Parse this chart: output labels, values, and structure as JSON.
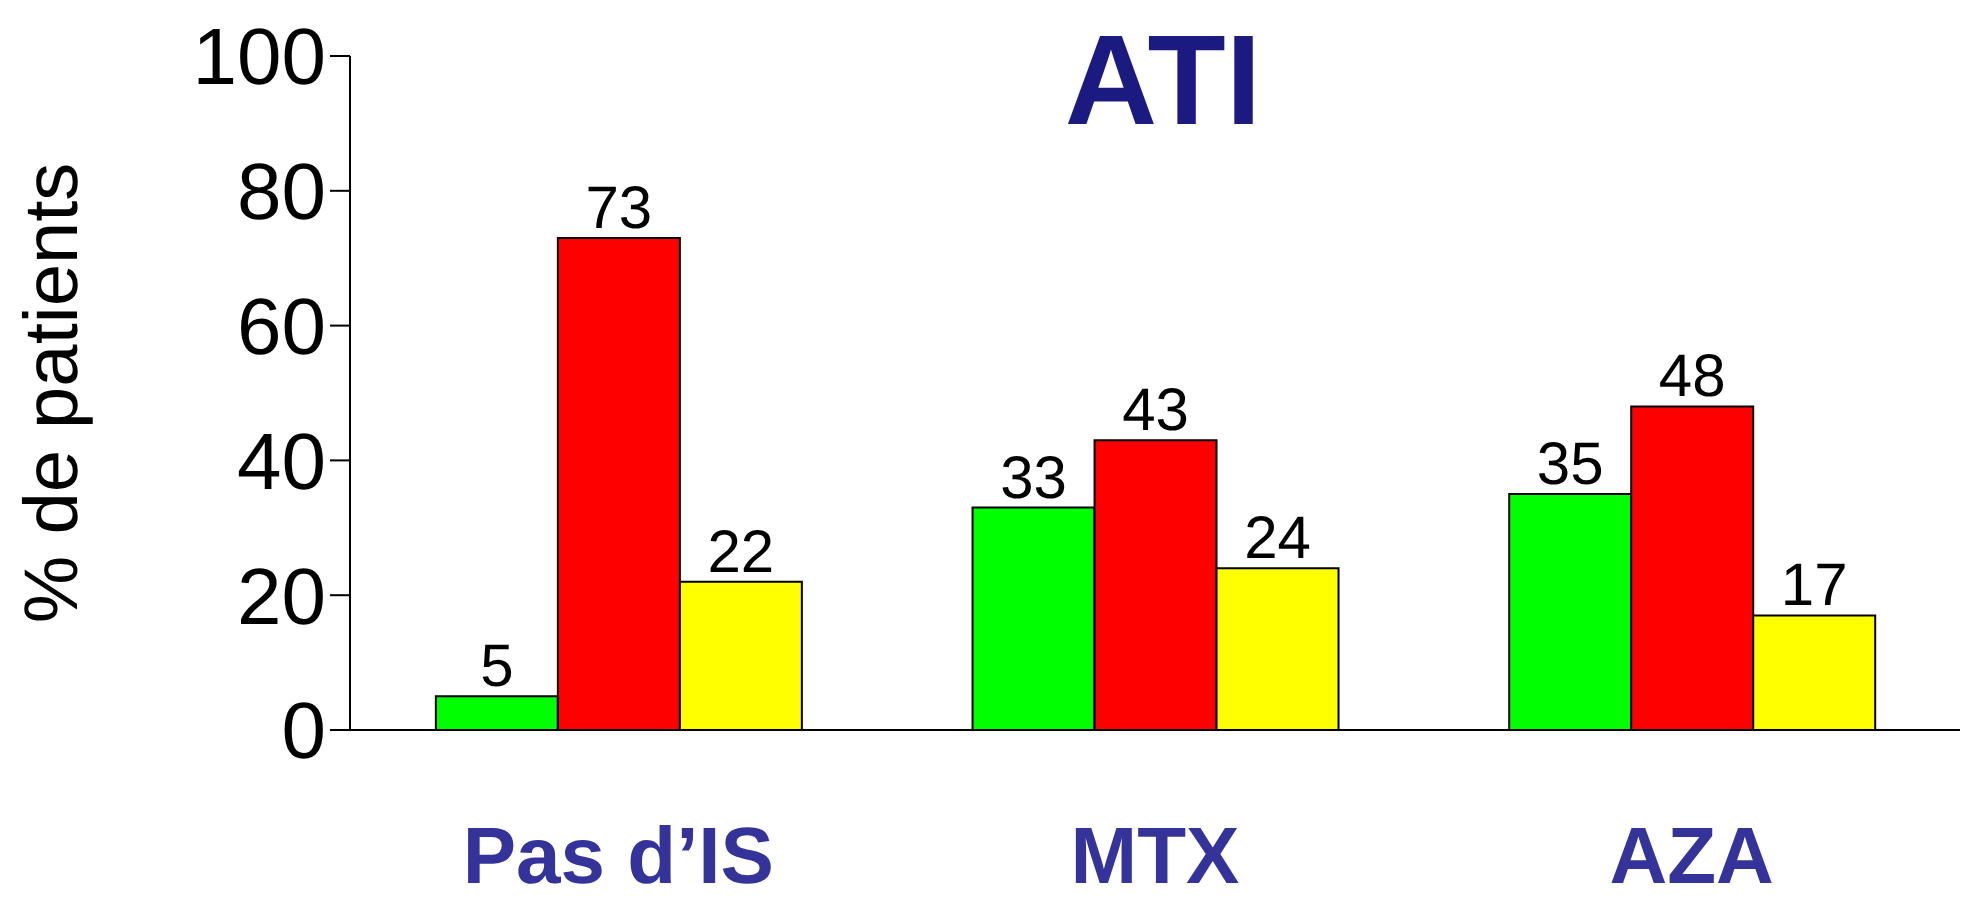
{
  "chart_data": {
    "type": "bar",
    "title": "ATI",
    "ylabel": "% de patients",
    "categories": [
      "Pas d’IS",
      "MTX",
      "AZA"
    ],
    "series": [
      {
        "color": "#00ff00",
        "values": [
          5,
          33,
          35
        ]
      },
      {
        "color": "#ff0000",
        "values": [
          73,
          43,
          48
        ]
      },
      {
        "color": "#ffff00",
        "values": [
          22,
          24,
          17
        ]
      }
    ],
    "ylim": [
      0,
      100
    ],
    "yticks": [
      0,
      20,
      40,
      60,
      80,
      100
    ],
    "data_labels": true,
    "grid": false,
    "legend": false
  }
}
